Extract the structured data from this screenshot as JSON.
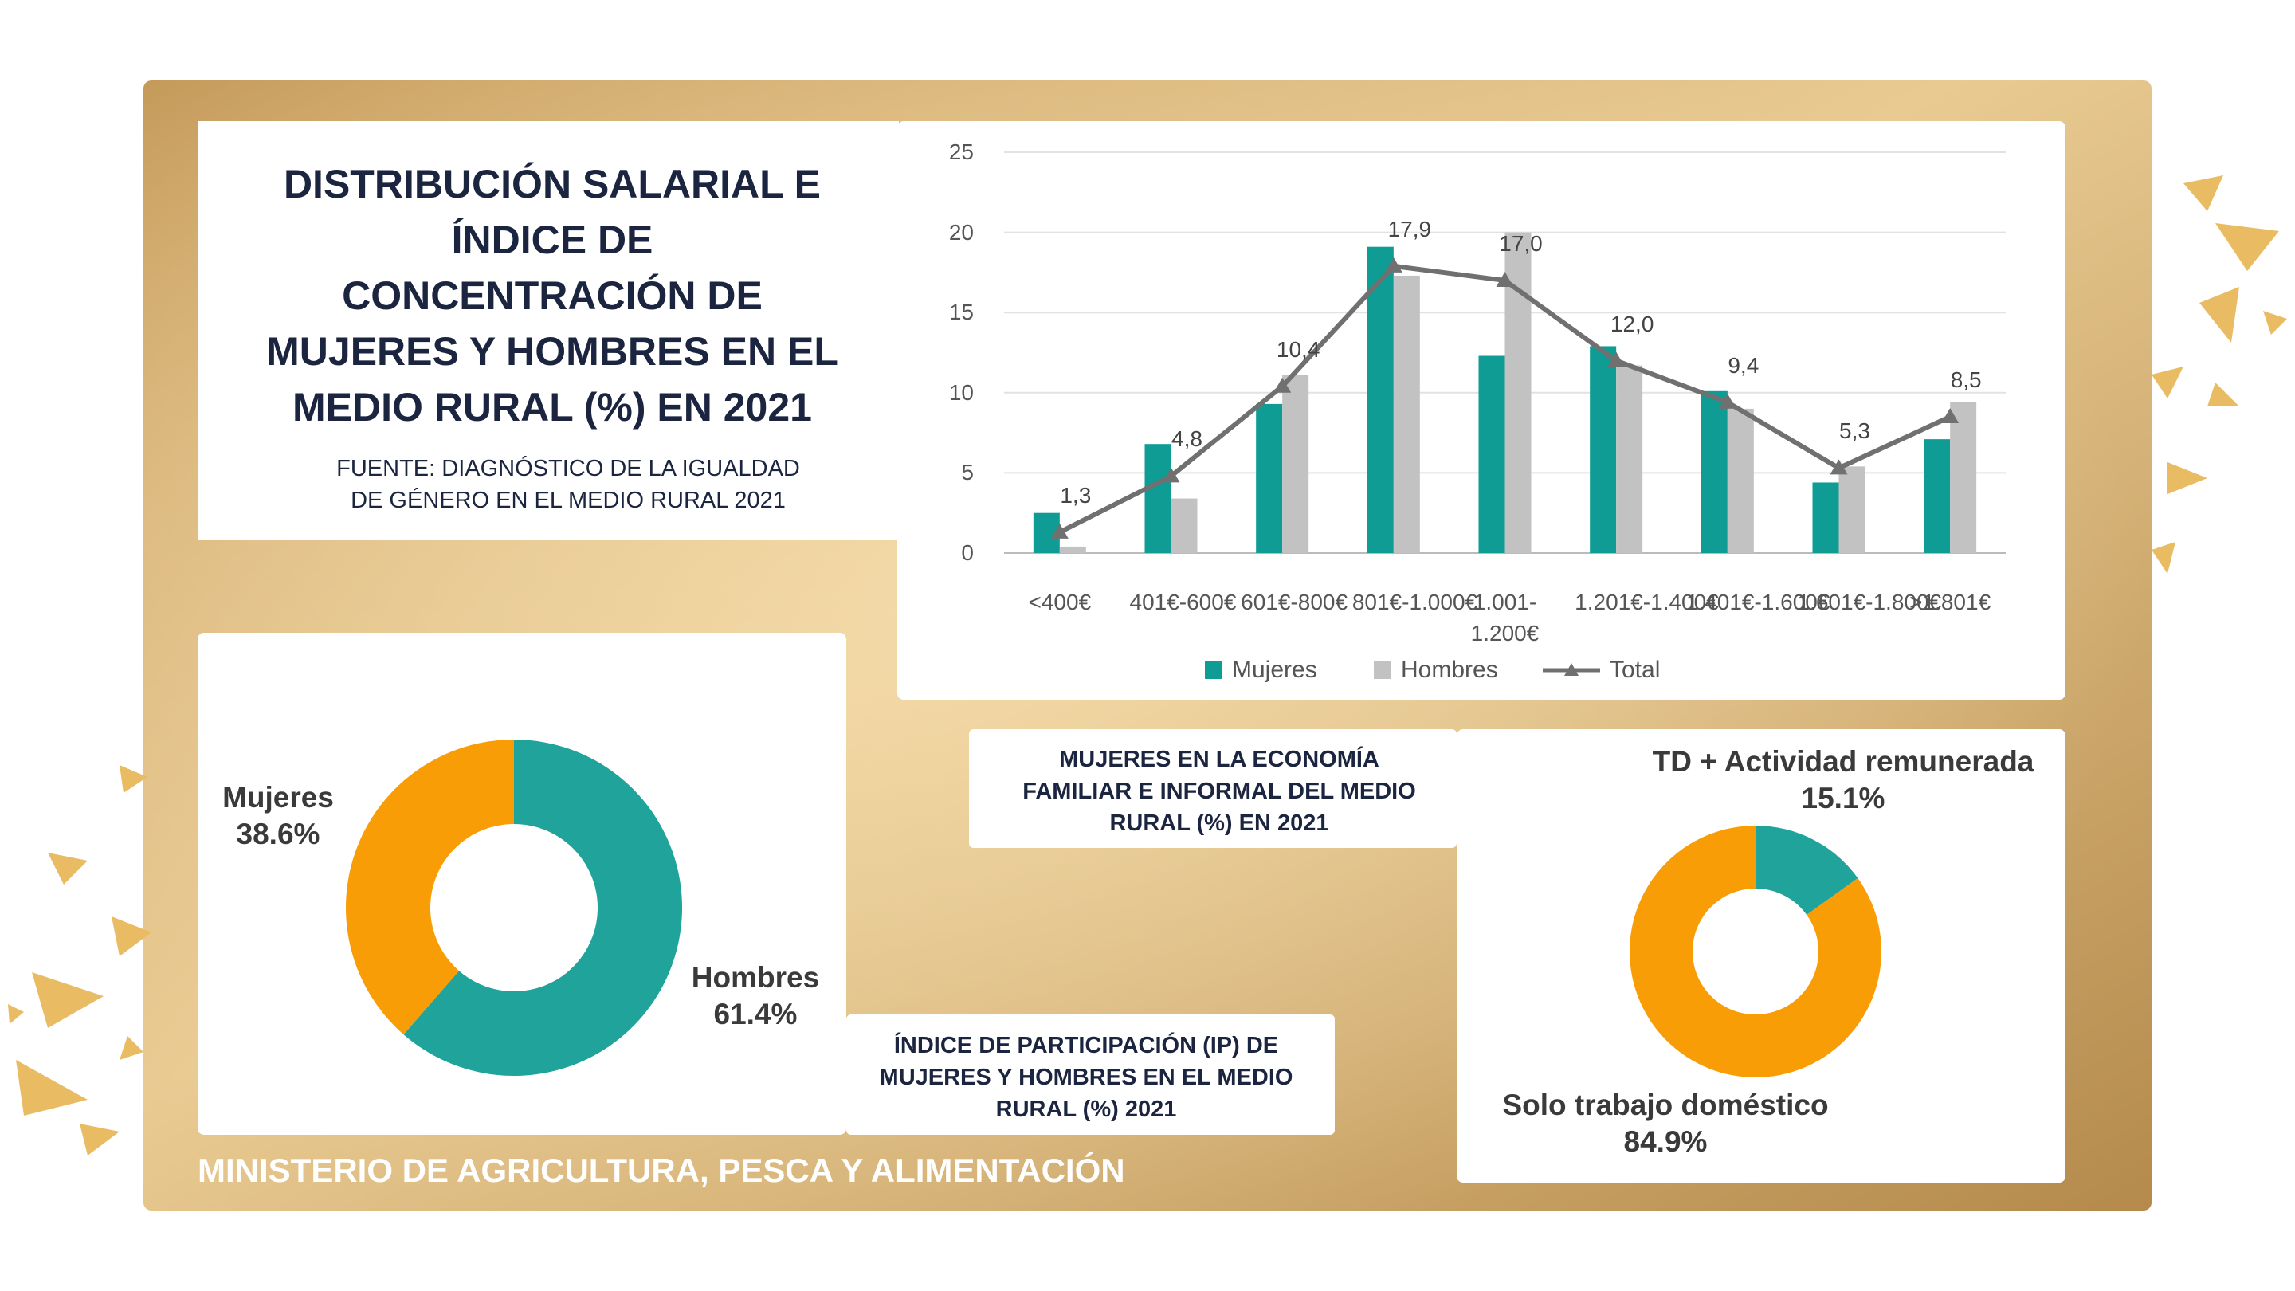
{
  "header": {
    "title": "DISTRIBUCIÓN SALARIAL E\nÍNDICE DE\nCONCENTRACIÓN DE\nMUJERES Y HOMBRES EN EL\nMEDIO RURAL (%) EN 2021",
    "source": "FUENTE: DIAGNÓSTICO DE LA IGUALDAD\nDE GÉNERO EN EL MEDIO RURAL 2021"
  },
  "footer": "MINISTERIO DE AGRICULTURA, PESCA Y ALIMENTACIÓN",
  "chart_data": [
    {
      "type": "bar",
      "categories": [
        "<400€",
        "401€-600€",
        "601€-800€",
        "801€-1.000€",
        "1.001-1.200€",
        "1.201€-1.400€",
        "1.401€-1.600€",
        "1.601€-1.800€",
        ">1.801€"
      ],
      "series": [
        {
          "name": "Mujeres",
          "color": "#0f9c94",
          "values": [
            2.5,
            6.8,
            9.3,
            19.1,
            12.3,
            12.9,
            10.1,
            4.4,
            7.1
          ]
        },
        {
          "name": "Hombres",
          "color": "#c2c2c2",
          "values": [
            0.4,
            3.4,
            11.1,
            17.3,
            20.0,
            11.7,
            9.0,
            5.4,
            9.4
          ]
        },
        {
          "name": "Total",
          "type": "line",
          "color": "#707070",
          "values": [
            1.3,
            4.8,
            10.4,
            17.9,
            17.0,
            12.0,
            9.4,
            5.3,
            8.5
          ],
          "value_labels": [
            "1,3",
            "4,8",
            "10,4",
            "17,9",
            "17,0",
            "12,0",
            "9,4",
            "5,3",
            "8,5"
          ]
        }
      ],
      "ylim": [
        0,
        25
      ],
      "yticks": [
        0,
        5,
        10,
        15,
        20,
        25
      ],
      "grid": true
    },
    {
      "type": "donut",
      "title": "ÍNDICE DE PARTICIPACIÓN (IP) DE\nMUJERES Y HOMBRES EN EL MEDIO\nRURAL (%) 2021",
      "categories": [
        "Hombres",
        "Mujeres"
      ],
      "values": [
        61.4,
        38.6
      ],
      "value_labels": [
        "61.4%",
        "38.6%"
      ],
      "colors": [
        "#1fa39a",
        "#f99d07"
      ]
    },
    {
      "type": "donut",
      "title": "MUJERES EN LA ECONOMÍA\nFAMILIAR E INFORMAL DEL MEDIO\nRURAL (%) EN 2021",
      "categories": [
        "TD + Actividad remunerada",
        "Solo trabajo doméstico"
      ],
      "values": [
        15.1,
        84.9
      ],
      "value_labels": [
        "15.1%",
        "84.9%"
      ],
      "colors": [
        "#1fa39a",
        "#f99d07"
      ]
    }
  ]
}
